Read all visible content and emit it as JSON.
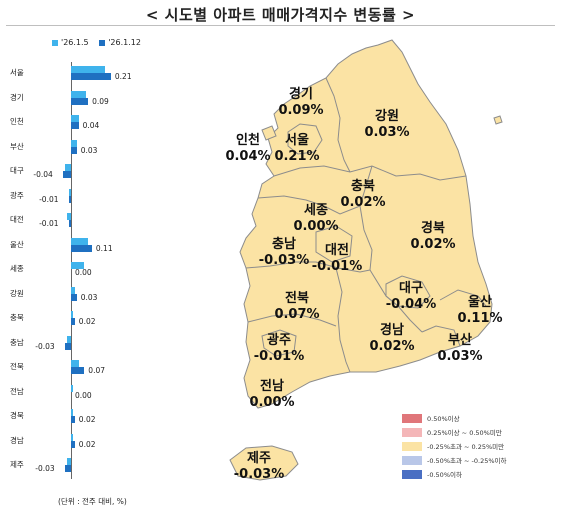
{
  "title": "< 시도별 아파트 매매가격지수 변동률 >",
  "legend_series": [
    {
      "label": "'26.1.5",
      "color": "#3fb3ec"
    },
    {
      "label": "'26.1.12",
      "color": "#1f70c1"
    }
  ],
  "chart_data": {
    "type": "bar",
    "orientation": "horizontal",
    "categories": [
      "서울",
      "경기",
      "인천",
      "부산",
      "대구",
      "광주",
      "대전",
      "울산",
      "세종",
      "강원",
      "충북",
      "충남",
      "전북",
      "전남",
      "경북",
      "경남",
      "제주"
    ],
    "series": [
      {
        "name": "'26.1.5",
        "values": [
          0.18,
          0.08,
          0.04,
          0.03,
          -0.03,
          -0.01,
          -0.02,
          0.09,
          0.07,
          0.02,
          0.01,
          -0.02,
          0.04,
          0.01,
          0.01,
          0.01,
          -0.02
        ]
      },
      {
        "name": "'26.1.12",
        "values": [
          0.21,
          0.09,
          0.04,
          0.03,
          -0.04,
          -0.01,
          -0.01,
          0.11,
          0.0,
          0.03,
          0.02,
          -0.03,
          0.07,
          0.0,
          0.02,
          0.02,
          -0.03
        ]
      }
    ],
    "value_labels": [
      "0.21",
      "0.09",
      "0.04",
      "0.03",
      "-0.04",
      "-0.01",
      "-0.01",
      "0.11",
      "0.00",
      "0.03",
      "0.02",
      "-0.03",
      "0.07",
      "0.00",
      "0.02",
      "0.02",
      "-0.03"
    ],
    "unit_note": "(단위 : 전주 대비, %)"
  },
  "map": {
    "regions": [
      {
        "name": "경기",
        "value": "0.09%"
      },
      {
        "name": "강원",
        "value": "0.03%"
      },
      {
        "name": "인천",
        "value": "0.04%"
      },
      {
        "name": "서울",
        "value": "0.21%"
      },
      {
        "name": "충북",
        "value": "0.02%"
      },
      {
        "name": "세종",
        "value": "0.00%"
      },
      {
        "name": "경북",
        "value": "0.02%"
      },
      {
        "name": "충남",
        "value": "-0.03%"
      },
      {
        "name": "대전",
        "value": "-0.01%"
      },
      {
        "name": "대구",
        "value": "-0.04%"
      },
      {
        "name": "울산",
        "value": "0.11%"
      },
      {
        "name": "전북",
        "value": "0.07%"
      },
      {
        "name": "광주",
        "value": "-0.01%"
      },
      {
        "name": "경남",
        "value": "0.02%"
      },
      {
        "name": "부산",
        "value": "0.03%"
      },
      {
        "name": "전남",
        "value": "0.00%"
      },
      {
        "name": "제주",
        "value": "-0.03%"
      }
    ],
    "fill_color": "#fbe3a4",
    "border_color": "#8c8c8c",
    "legend": [
      {
        "label": "0.50%이상",
        "color": "#e0767a"
      },
      {
        "label": "0.25%이상 ~ 0.50%미만",
        "color": "#f4b6b8"
      },
      {
        "label": "-0.25%초과 ~ 0.25%미만",
        "color": "#fbe3a4"
      },
      {
        "label": "-0.50%초과 ~ -0.25%이하",
        "color": "#b9c7e8"
      },
      {
        "label": "-0.50%이하",
        "color": "#4a6fc3"
      }
    ]
  }
}
